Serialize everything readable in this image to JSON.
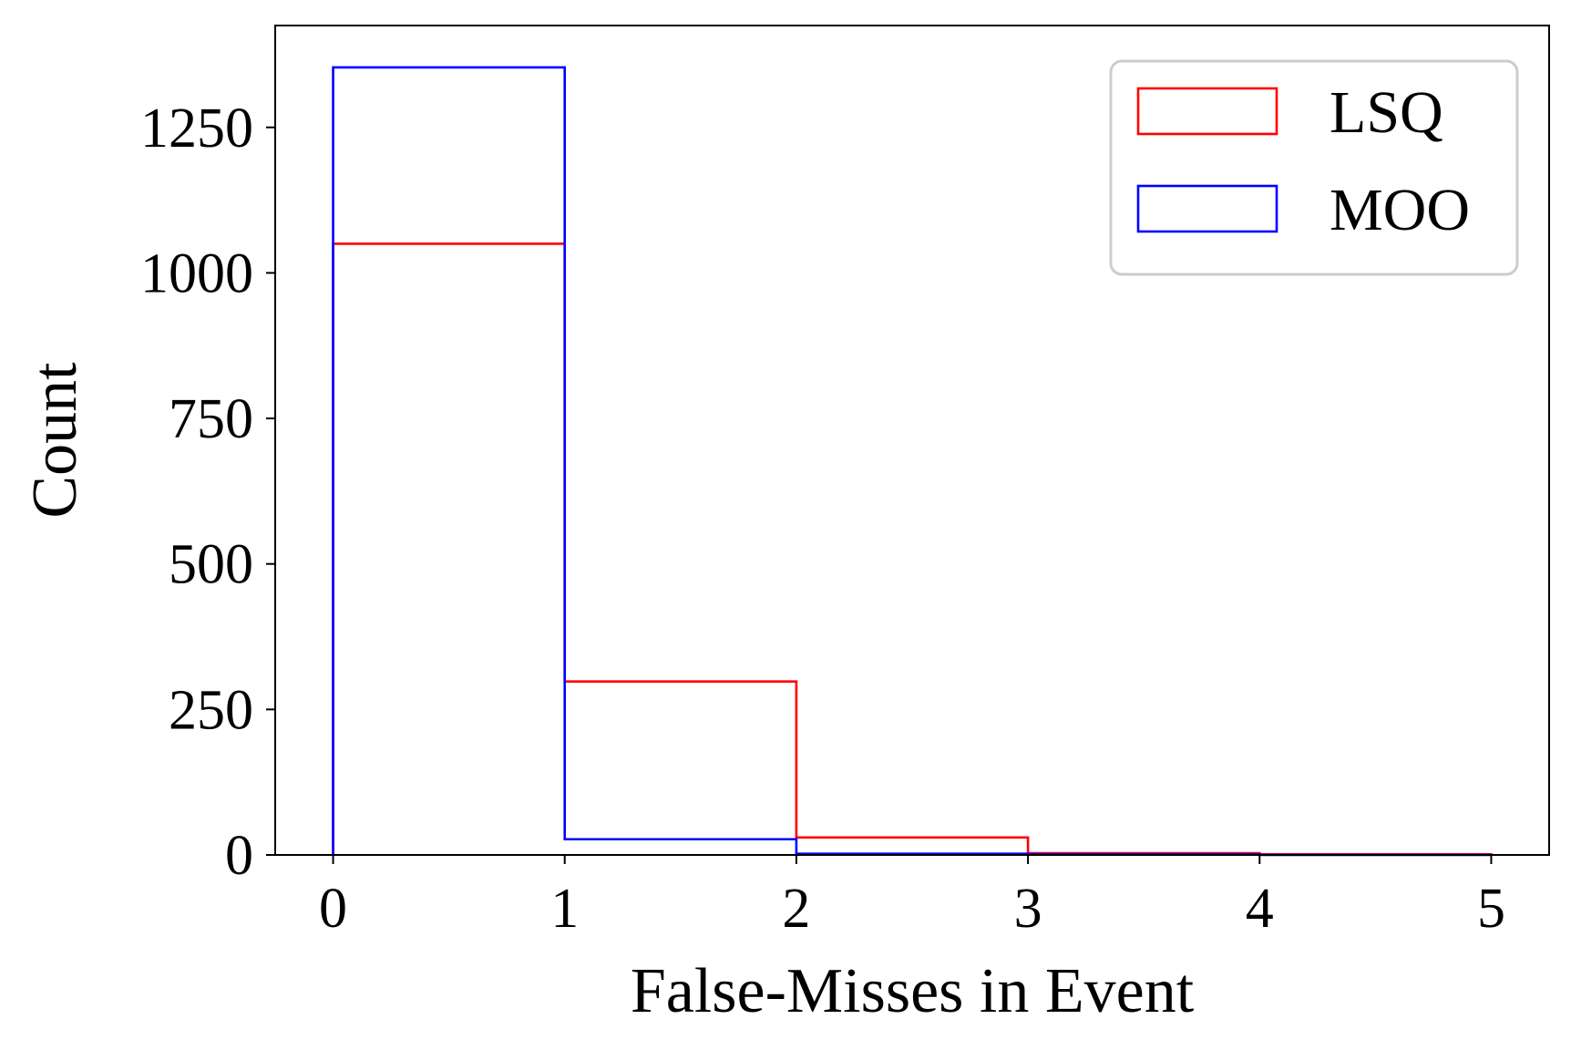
{
  "chart_data": {
    "type": "histogram",
    "xlabel": "False-Misses in Event",
    "ylabel": "Count",
    "xlim": [
      -0.25,
      5.25
    ],
    "ylim": [
      0,
      1425
    ],
    "xticks": [
      0,
      1,
      2,
      3,
      4,
      5
    ],
    "xtick_labels": [
      "0",
      "1",
      "2",
      "3",
      "4",
      "5"
    ],
    "yticks": [
      0,
      250,
      500,
      750,
      1000,
      1250
    ],
    "ytick_labels": [
      "0",
      "250",
      "500",
      "750",
      "1000",
      "1250"
    ],
    "bin_edges": [
      0,
      1,
      2,
      3,
      4,
      5
    ],
    "grid": false,
    "legend_position": "upper right",
    "series": [
      {
        "name": "LSQ",
        "color": "#ff0000",
        "values": [
          1050,
          298,
          30,
          3,
          1
        ]
      },
      {
        "name": "MOO",
        "color": "#0000ff",
        "values": [
          1353,
          27,
          2,
          1,
          0
        ]
      }
    ]
  }
}
